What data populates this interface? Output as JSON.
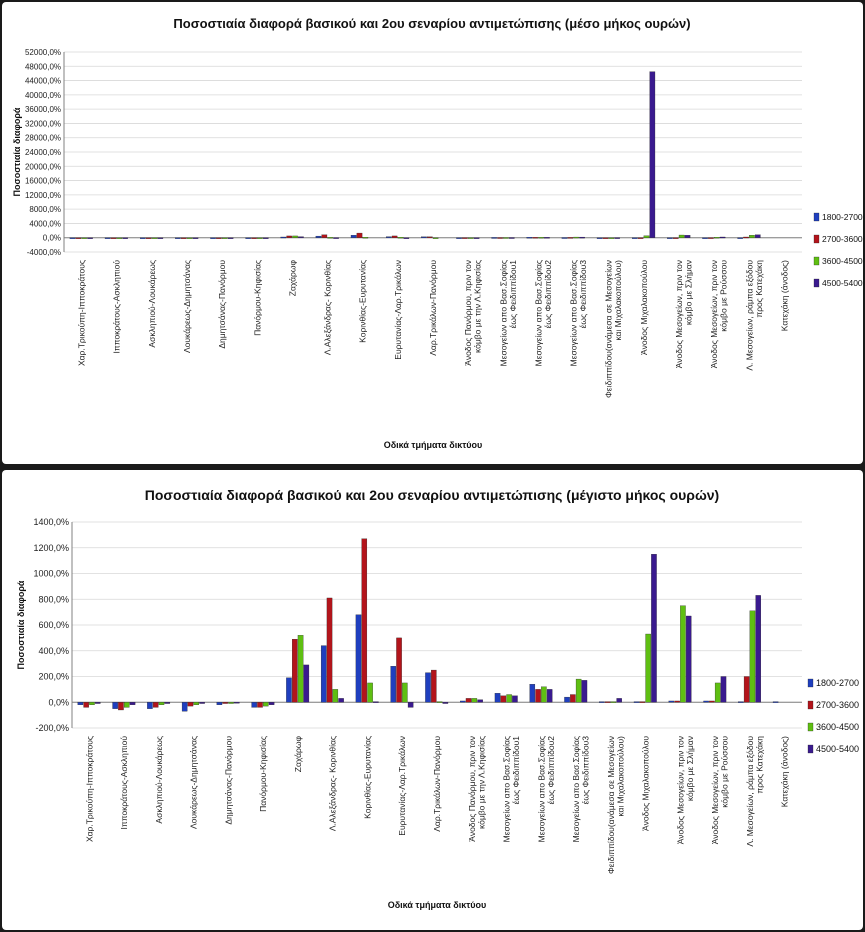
{
  "colors": {
    "1800-2700": "#1f3fbf",
    "2700-3600": "#b3141b",
    "3600-4500": "#5fbf12",
    "4500-5400": "#3a1a8f",
    "grid": "#d8d8d8",
    "axis": "#808080"
  },
  "chart_data": [
    {
      "type": "bar",
      "title": "Ποσοστιαία διαφορά βασικού και 2ου σεναρίου αντιμετώπισης (μέσο μήκος ουρών)",
      "xlabel": "Οδικά τμήματα δικτύου",
      "ylabel": "Ποσοστιαία διαφορά",
      "ylim": [
        -4000,
        52000
      ],
      "yticks": [
        52000,
        48000,
        44000,
        40000,
        36000,
        32000,
        28000,
        24000,
        20000,
        16000,
        12000,
        8000,
        4000,
        0,
        -4000
      ],
      "ytick_labels": [
        "52000,0%",
        "48000,0%",
        "44000,0%",
        "40000,0%",
        "36000,0%",
        "32000,0%",
        "28000,0%",
        "24000,0%",
        "20000,0%",
        "16000,0%",
        "12000,0%",
        "8000,0%",
        "4000,0%",
        "0,0%",
        "-4000,0%"
      ],
      "categories": [
        "Χαρ.Τρικούπη-Ιπποκράτους",
        "Ιπποκράτους-Ασκληπιού",
        "Ασκληπιού-Λουκάρεως",
        "Λουκάρεως-Δημητσάνας",
        "Δημητσάνας-Πανόρμου",
        "Πανόρμου-Κηφισίας",
        "Ζαχάρωφ",
        "Λ.Αλεξάνδρας- Κορινθίας",
        "Κορινθίας-Ευρυτανίας",
        "Ευρυτανίας-Λαρ.Τρικάλων",
        "Λαρ.Τρικάλων-Πανόρμου",
        "Άνοδος Πανόρμου, πριν τον κόμβο με την Λ.Κηφισίας",
        "Μεσογείων απο Βασ.Σοφίας έως Φειδιππίδου1",
        "Μεσογείων απο Βασ.Σοφίας έως Φειδιππίδου2",
        "Μεσογείων απο Βασ.Σοφίας έως Φειδιππίδου3",
        "Φειδιππίδου(ανάμεσα σε Μεσογείων και Μιχαλακοπούλου)",
        "Άνοδος Μιχαλακοπούλου",
        "Άνοδος Μεσογείων, πριν τον κόμβο με Σλήμαν",
        "Άνοδος Μεσογείων, πριν τον κόμβο με Ρούσσου",
        "Λ. Μεσογείων, ράμπα εξόδου προς Κατεχάκη",
        "Κατεχάκη (άνοδος)"
      ],
      "legend": "right",
      "series": [
        {
          "name": "1800-2700",
          "values": [
            -50,
            -80,
            -60,
            -80,
            -30,
            -40,
            200,
            450,
            700,
            300,
            250,
            20,
            70,
            130,
            50,
            10,
            20,
            20,
            10,
            20,
            0
          ]
        },
        {
          "name": "2700-3600",
          "values": [
            -60,
            -70,
            -50,
            -30,
            -10,
            -40,
            500,
            820,
            1300,
            500,
            260,
            30,
            50,
            100,
            80,
            10,
            20,
            20,
            30,
            200,
            0
          ]
        },
        {
          "name": "3600-4500",
          "values": [
            -30,
            -40,
            -30,
            -20,
            -10,
            -30,
            500,
            100,
            150,
            150,
            10,
            30,
            60,
            120,
            180,
            10,
            550,
            750,
            150,
            700,
            0
          ]
        },
        {
          "name": "4500-5400",
          "values": [
            -20,
            -30,
            -20,
            -10,
            -10,
            -20,
            300,
            30,
            0,
            -40,
            0,
            20,
            50,
            100,
            170,
            30,
            46500,
            680,
            200,
            830,
            0
          ]
        }
      ],
      "series_top_values_note": ""
    },
    {
      "type": "bar",
      "title": "Ποσοστιαία διαφορά βασικού και 2ου σεναρίου αντιμετώπισης (μέγιστο μήκος ουρών)",
      "xlabel": "Οδικά τμήματα δικτύου",
      "ylabel": "Ποσοστιαία διαφορά",
      "ylim": [
        -200,
        1400
      ],
      "yticks": [
        1400,
        1200,
        1000,
        800,
        600,
        400,
        200,
        0,
        -200
      ],
      "ytick_labels": [
        "1400,0%",
        "1200,0%",
        "1000,0%",
        "800,0%",
        "600,0%",
        "400,0%",
        "200,0%",
        "0,0%",
        "-200,0%"
      ],
      "categories": [
        "Χαρ.Τρικούπη-Ιπποκράτους",
        "Ιπποκράτους-Ασκληπιού",
        "Ασκληπιού-Λουκάρεως",
        "Λουκάρεως-Δημητσάνας",
        "Δημητσάνας-Πανόρμου",
        "Πανόρμου-Κηφισίας",
        "Ζαχάρωφ",
        "Λ.Αλεξάνδρας- Κορινθίας",
        "Κορινθίας-Ευρυτανίας",
        "Ευρυτανίας-Λαρ.Τρικάλων",
        "Λαρ.Τρικάλων-Πανόρμου",
        "Άνοδος Πανόρμου, πριν τον κόμβο με την Λ.Κηφισίας",
        "Μεσογείων απο Βασ.Σοφίας έως Φειδιππίδου1",
        "Μεσογείων απο Βασ.Σοφίας έως Φειδιππίδου2",
        "Μεσογείων απο Βασ.Σοφίας έως Φειδιππίδου3",
        "Φειδιππίδου(ανάμεσα σε Μεσογείων και Μιχαλακοπούλου)",
        "Άνοδος Μιχαλακοπούλου",
        "Άνοδος Μεσογείων, πριν τον κόμβο με Σλήμαν",
        "Άνοδος Μεσογείων, πριν τον κόμβο με Ρούσσου",
        "Λ. Μεσογείων, ράμπα εξόδου προς Κατεχάκη",
        "Κατεχάκη (άνοδος)"
      ],
      "legend": "right",
      "series": [
        {
          "name": "1800-2700",
          "values": [
            -20,
            -50,
            -50,
            -70,
            -20,
            -40,
            190,
            440,
            680,
            280,
            230,
            10,
            70,
            140,
            40,
            5,
            5,
            10,
            10,
            5,
            5
          ]
        },
        {
          "name": "2700-3600",
          "values": [
            -40,
            -60,
            -40,
            -30,
            -10,
            -40,
            490,
            810,
            1270,
            500,
            250,
            30,
            50,
            100,
            60,
            5,
            5,
            10,
            10,
            200,
            0
          ]
        },
        {
          "name": "3600-4500",
          "values": [
            -20,
            -40,
            -20,
            -20,
            -10,
            -30,
            520,
            100,
            150,
            150,
            5,
            30,
            60,
            120,
            180,
            5,
            530,
            750,
            150,
            710,
            0
          ]
        },
        {
          "name": "4500-5400",
          "values": [
            -10,
            -20,
            -10,
            -10,
            -5,
            -20,
            290,
            30,
            5,
            -40,
            -10,
            20,
            50,
            100,
            170,
            30,
            1150,
            670,
            200,
            830,
            0
          ]
        }
      ]
    }
  ]
}
